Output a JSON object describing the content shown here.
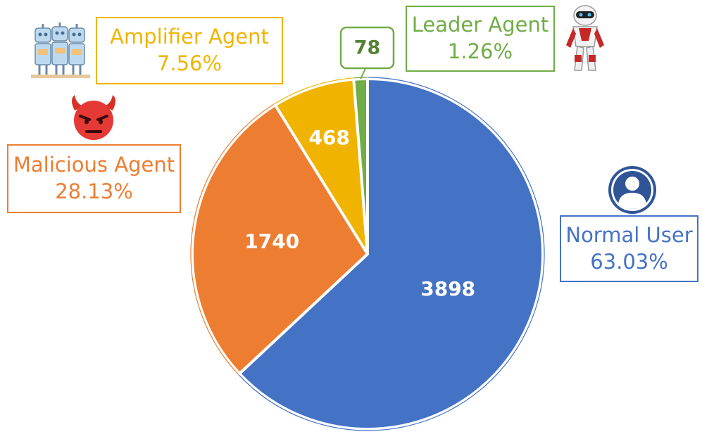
{
  "chart_data": {
    "type": "pie",
    "categories": [
      "Normal User",
      "Malicious Agent",
      "Amplifier Agent",
      "Leader Agent"
    ],
    "values": [
      3898,
      1740,
      468,
      78
    ],
    "percent_labels": [
      "63.03%",
      "28.13%",
      "7.56%",
      "1.26%"
    ],
    "value_labels": [
      "3898",
      "1740",
      "468",
      "78"
    ],
    "colors": [
      "#4472c4",
      "#ed7d31",
      "#f0b400",
      "#70ad47"
    ],
    "title": "",
    "legend": "none",
    "start_angle_deg": 0,
    "direction": "clockwise"
  },
  "icons": {
    "normal_user": "user-avatar-icon",
    "malicious_agent": "devil-face-icon",
    "amplifier_agent": "robot-group-icon",
    "leader_agent": "leader-robot-icon"
  }
}
